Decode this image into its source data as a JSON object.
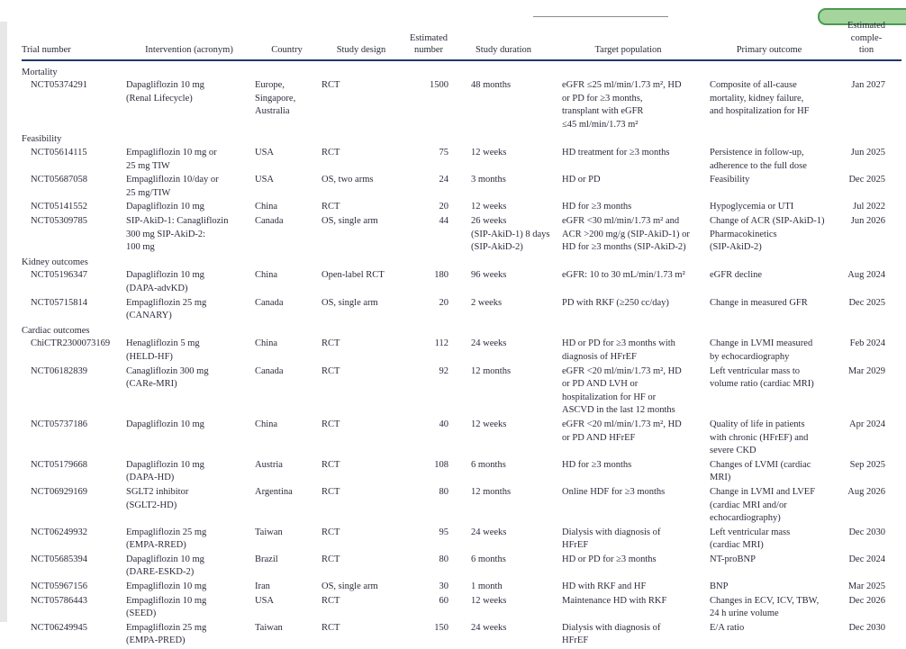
{
  "colors": {
    "text": "#2b2b3d",
    "header_rule": "#21386b",
    "highlight_fill": "#a5d49d",
    "highlight_border": "#4a9a52",
    "page_edge_strip": "#e7e7e7",
    "partial_rule": "#8c8c8c"
  },
  "table": {
    "columns": [
      "Trial number",
      "Intervention (acronym)",
      "Country",
      "Study design",
      "Estimated\nnumber",
      "Study duration",
      "Target population",
      "Primary outcome",
      "Estimated\ncomple-\ntion"
    ],
    "sections": [
      {
        "label": "Mortality",
        "rows": [
          [
            "NCT05374291",
            "Dapagliflozin 10 mg\n(Renal Lifecycle)",
            "Europe,\nSingapore,\nAustralia",
            "RCT",
            "1500",
            "48 months",
            "eGFR ≤25 ml/min/1.73 m², HD\nor PD for ≥3 months,\ntransplant with eGFR\n≤45 ml/min/1.73 m²",
            "Composite of all-cause\nmortality, kidney failure,\nand hospitalization for HF",
            "Jan 2027"
          ]
        ]
      },
      {
        "label": "Feasibility",
        "rows": [
          [
            "NCT05614115",
            "Empagliflozin 10 mg or\n25 mg TIW",
            "USA",
            "RCT",
            "75",
            "12 weeks",
            "HD treatment for ≥3 months",
            "Persistence in follow-up,\nadherence to the full dose",
            "Jun 2025"
          ],
          [
            "NCT05687058",
            "Empagliflozin 10/day or\n25 mg/TIW",
            "USA",
            "OS, two arms",
            "24",
            "3 months",
            "HD or PD",
            "Feasibility",
            "Dec 2025"
          ],
          [
            "NCT05141552",
            "Dapagliflozin 10 mg",
            "China",
            "RCT",
            "20",
            "12 weeks",
            "HD for ≥3 months",
            "Hypoglycemia or UTI",
            "Jul 2022"
          ],
          [
            "NCT05309785",
            "SIP-AkiD-1: Canagliflozin\n300 mg SIP-AkiD-2:\n100 mg",
            "Canada",
            "OS, single arm",
            "44",
            "26 weeks\n(SIP-AkiD-1) 8 days\n(SIP-AkiD-2)",
            "eGFR <30 ml/min/1.73 m² and\nACR >200 mg/g (SIP-AkiD-1) or\nHD for ≥3 months (SIP-AkiD-2)",
            "Change of ACR (SIP-AkiD-1)\nPharmacokinetics\n(SIP-AkiD-2)",
            "Jun 2026"
          ]
        ]
      },
      {
        "label": "Kidney outcomes",
        "rows": [
          [
            "NCT05196347",
            "Dapagliflozin 10 mg\n(DAPA-advKD)",
            "China",
            "Open-label RCT",
            "180",
            "96 weeks",
            "eGFR: 10 to 30 mL/min/1.73 m²",
            "eGFR decline",
            "Aug 2024"
          ],
          [
            "NCT05715814",
            "Empagliflozin 25 mg\n(CANARY)",
            "Canada",
            "OS, single arm",
            "20",
            "2 weeks",
            "PD with RKF (≥250 cc/day)",
            "Change in measured GFR",
            "Dec 2025"
          ]
        ]
      },
      {
        "label": "Cardiac outcomes",
        "rows": [
          [
            "ChiCTR2300073169",
            "Henagliflozin 5 mg\n(HELD-HF)",
            "China",
            "RCT",
            "112",
            "24 weeks",
            "HD or PD for ≥3 months with\ndiagnosis of HFrEF",
            "Change in LVMI measured\nby echocardiography",
            "Feb 2024"
          ],
          [
            "NCT06182839",
            "Canagliflozin 300 mg\n(CARe-MRI)",
            "Canada",
            "RCT",
            "92",
            "12 months",
            "eGFR <20 ml/min/1.73 m², HD\nor PD AND LVH or\nhospitalization for HF or\nASCVD in the last 12 months",
            "Left ventricular mass to\nvolume ratio (cardiac MRI)",
            "Mar 2029"
          ],
          [
            "NCT05737186",
            "Dapagliflozin 10 mg",
            "China",
            "RCT",
            "40",
            "12 weeks",
            "eGFR <20 ml/min/1.73 m², HD\nor PD AND HFrEF",
            "Quality of life in patients\nwith chronic (HFrEF) and\nsevere CKD",
            "Apr 2024"
          ],
          [
            "NCT05179668",
            "Dapagliflozin 10 mg\n(DAPA-HD)",
            "Austria",
            "RCT",
            "108",
            "6 months",
            "HD for ≥3 months",
            "Changes of LVMI (cardiac\nMRI)",
            "Sep 2025"
          ],
          [
            "NCT06929169",
            "SGLT2 inhibitor\n(SGLT2-HD)",
            "Argentina",
            "RCT",
            "80",
            "12 months",
            "Online HDF for ≥3 months",
            "Change in LVMI and LVEF\n(cardiac MRI and/or\nechocardiography)",
            "Aug 2026"
          ],
          [
            "NCT06249932",
            "Empagliflozin 25 mg\n(EMPA-RRED)",
            "Taiwan",
            "RCT",
            "95",
            "24 weeks",
            "Dialysis with diagnosis of\nHFrEF",
            "Left ventricular mass\n(cardiac MRI)",
            "Dec 2030"
          ],
          [
            "NCT05685394",
            "Dapagliflozin 10 mg\n(DARE-ESKD-2)",
            "Brazil",
            "RCT",
            "80",
            "6 months",
            "HD or PD for ≥3 months",
            "NT-proBNP",
            "Dec 2024"
          ],
          [
            "NCT05967156",
            "Empagliflozin 10 mg",
            "Iran",
            "OS, single arm",
            "30",
            "1 month",
            "HD with RKF and HF",
            "BNP",
            "Mar 2025"
          ],
          [
            "NCT05786443",
            "Empagliflozin 10 mg\n(SEED)",
            "USA",
            "RCT",
            "60",
            "12 weeks",
            "Maintenance HD with RKF",
            "Changes in ECV, ICV, TBW,\n24 h urine volume",
            "Dec 2026"
          ],
          [
            "NCT06249945",
            "Empagliflozin 25 mg\n(EMPA-PRED)",
            "Taiwan",
            "RCT",
            "150",
            "24 weeks",
            "Dialysis with diagnosis of\nHFrEF",
            "E/A ratio",
            "Dec 2030"
          ]
        ]
      }
    ]
  }
}
